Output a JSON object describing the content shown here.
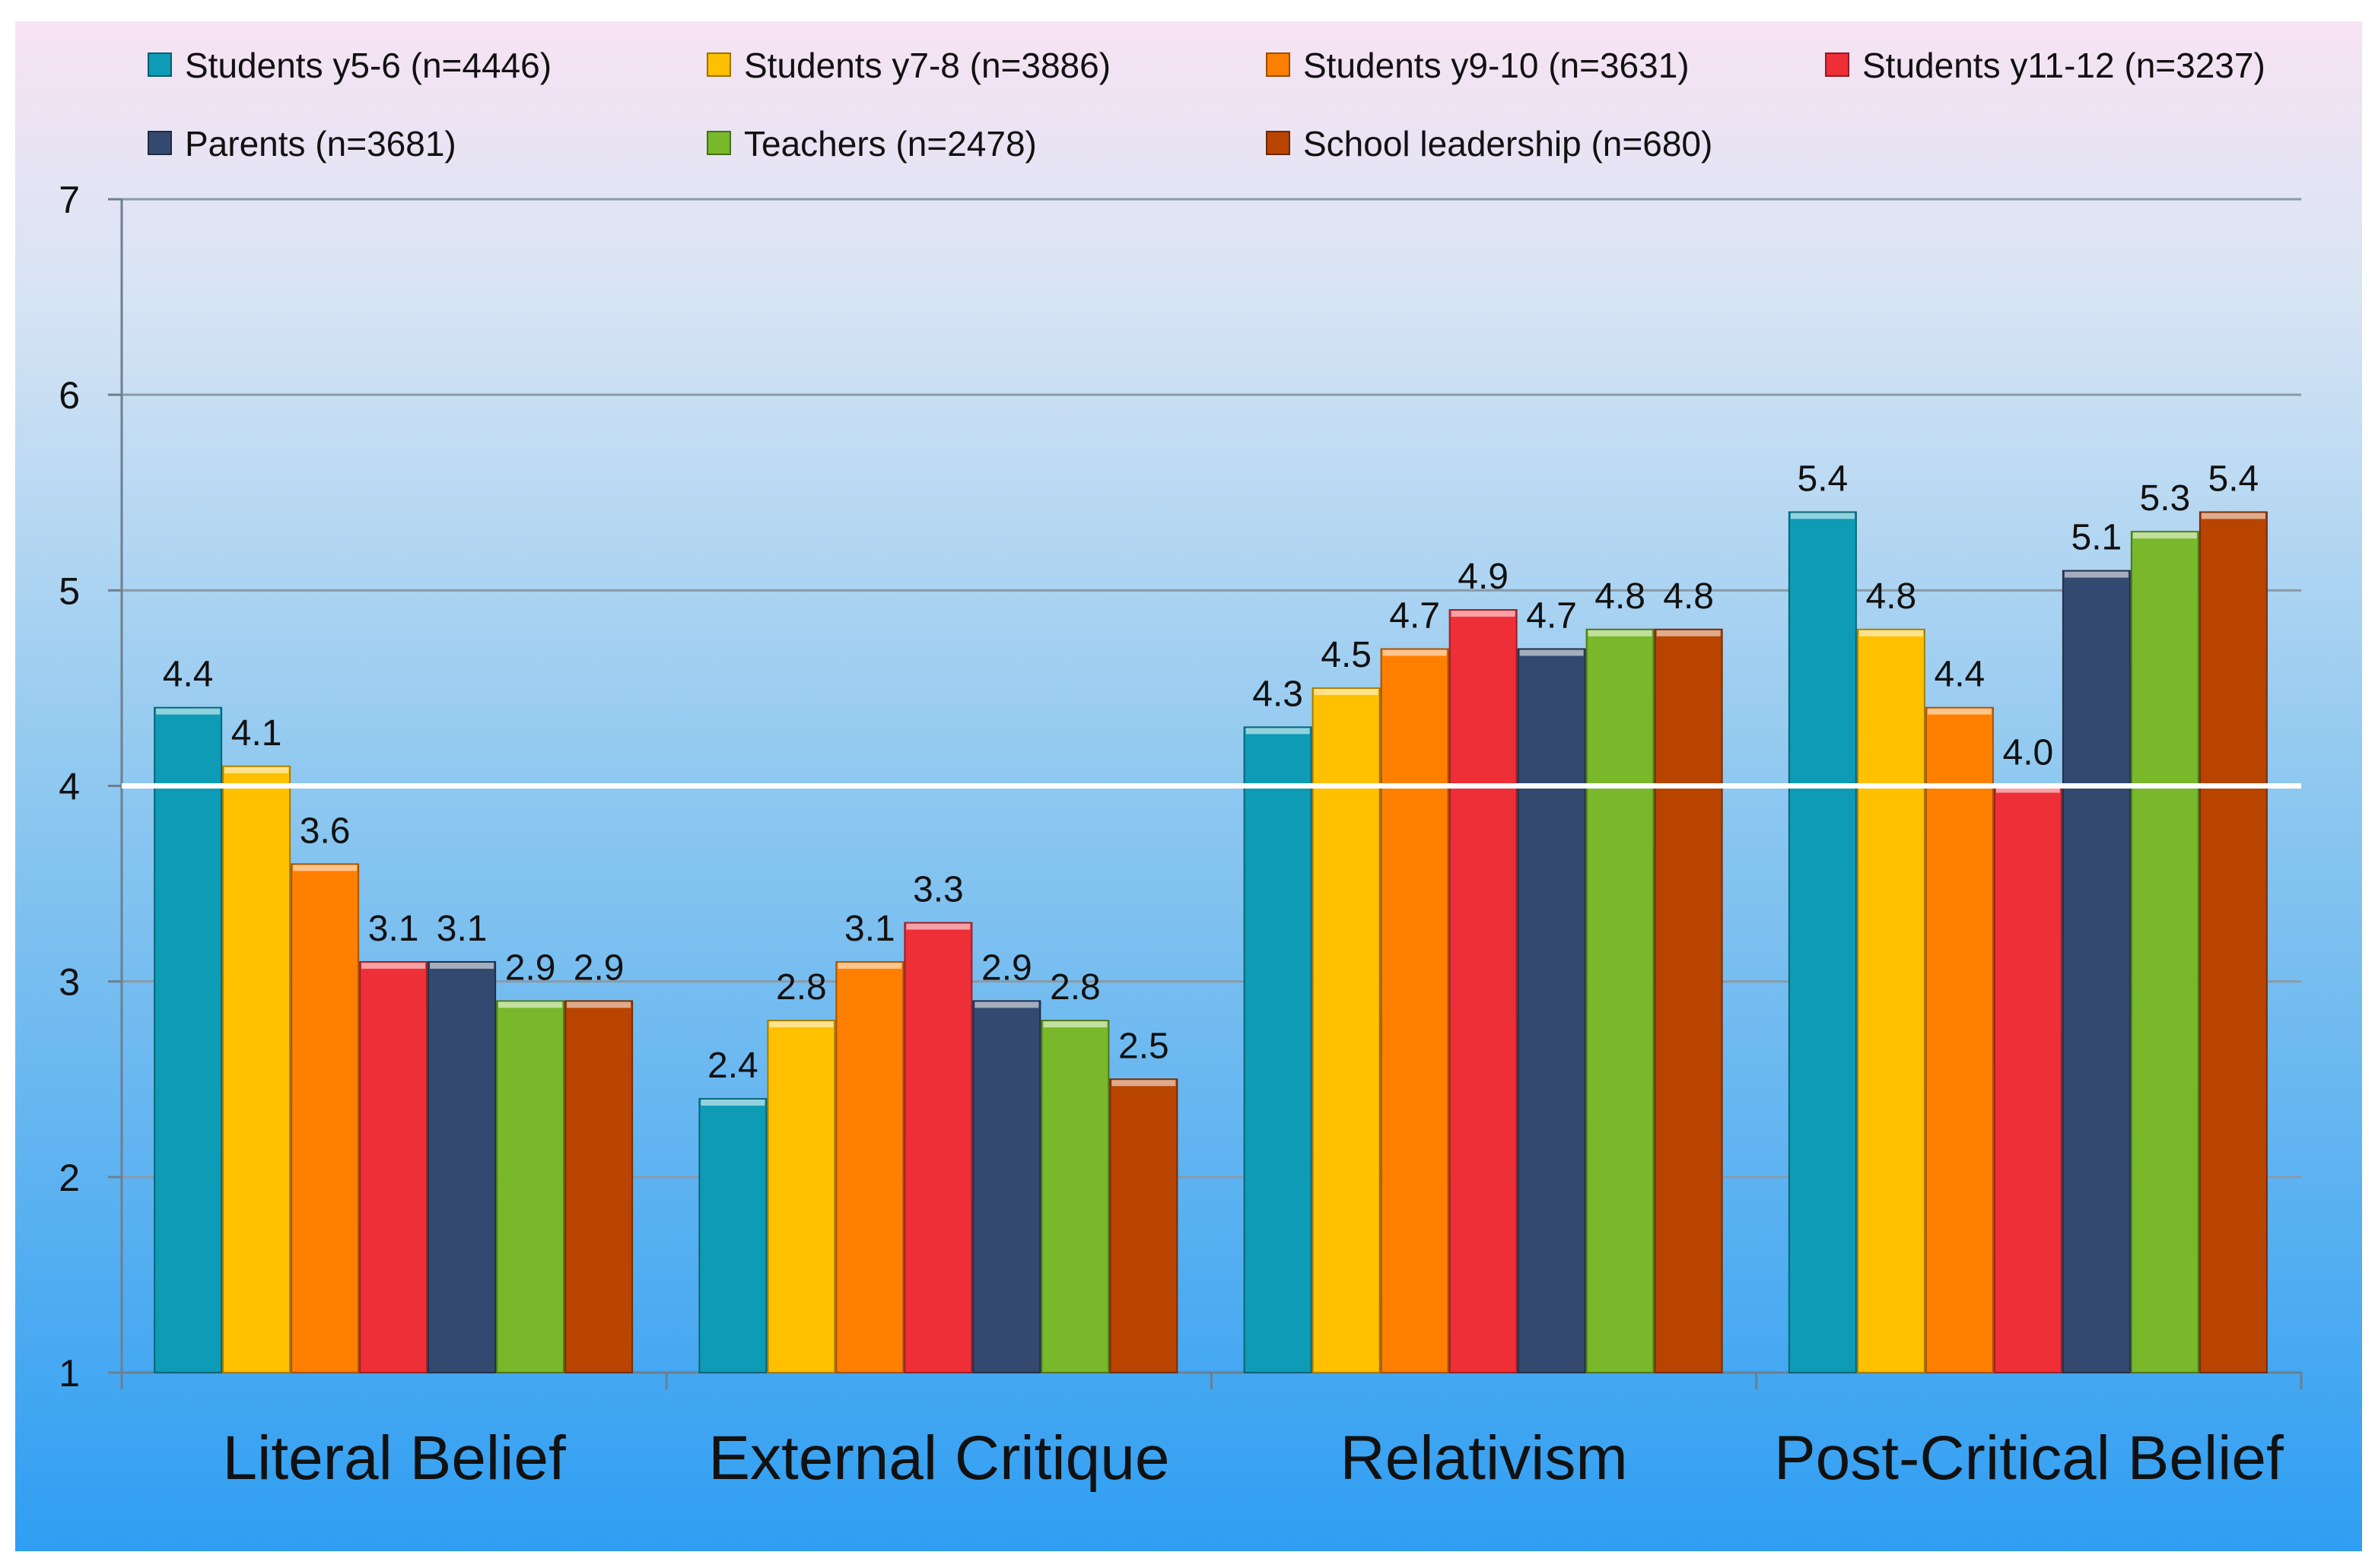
{
  "chart_data": {
    "type": "bar",
    "title": "",
    "xlabel": "",
    "ylabel": "",
    "ylim": [
      1,
      7
    ],
    "yticks": [
      1,
      2,
      3,
      4,
      5,
      6,
      7
    ],
    "reference_line": 4,
    "grid": true,
    "legend_position": "top",
    "categories": [
      "Literal Belief",
      "External Critique",
      "Relativism",
      "Post-Critical Belief"
    ],
    "series": [
      {
        "name": "Students y5-6 (n=4446)",
        "color": "#0d9bb5",
        "values": [
          4.4,
          2.4,
          4.3,
          5.4
        ],
        "labels": [
          "4.4",
          "2.4",
          "4.3",
          "5.4"
        ]
      },
      {
        "name": "Students y7-8 (n=3886)",
        "color": "#ffc000",
        "values": [
          4.1,
          2.8,
          4.5,
          4.8
        ],
        "labels": [
          "4.1",
          "2.8",
          "4.5",
          "4.8"
        ]
      },
      {
        "name": "Students y9-10 (n=3631)",
        "color": "#ff7f00",
        "values": [
          3.6,
          3.1,
          4.7,
          4.4
        ],
        "labels": [
          "3.6",
          "3.1",
          "4.7",
          "4.4"
        ]
      },
      {
        "name": "Students y11-12 (n=3237)",
        "color": "#ee2f37",
        "values": [
          3.1,
          3.3,
          4.9,
          4.0
        ],
        "labels": [
          "3.1",
          "3.3",
          "4.9",
          "4.0"
        ]
      },
      {
        "name": "Parents (n=3681)",
        "color": "#34496f",
        "values": [
          3.1,
          2.9,
          4.7,
          5.1
        ],
        "labels": [
          "3.1",
          "2.9",
          "4.7",
          "5.1"
        ]
      },
      {
        "name": "Teachers (n=2478)",
        "color": "#78b82a",
        "values": [
          2.9,
          2.8,
          4.8,
          5.3
        ],
        "labels": [
          "2.9",
          "2.8",
          "4.8",
          "5.3"
        ]
      },
      {
        "name": "School leadership (n=680)",
        "color": "#b84400",
        "values": [
          2.9,
          2.5,
          4.8,
          5.4
        ],
        "labels": [
          "2.9",
          "2.5",
          "4.8",
          "5.4"
        ]
      }
    ]
  }
}
